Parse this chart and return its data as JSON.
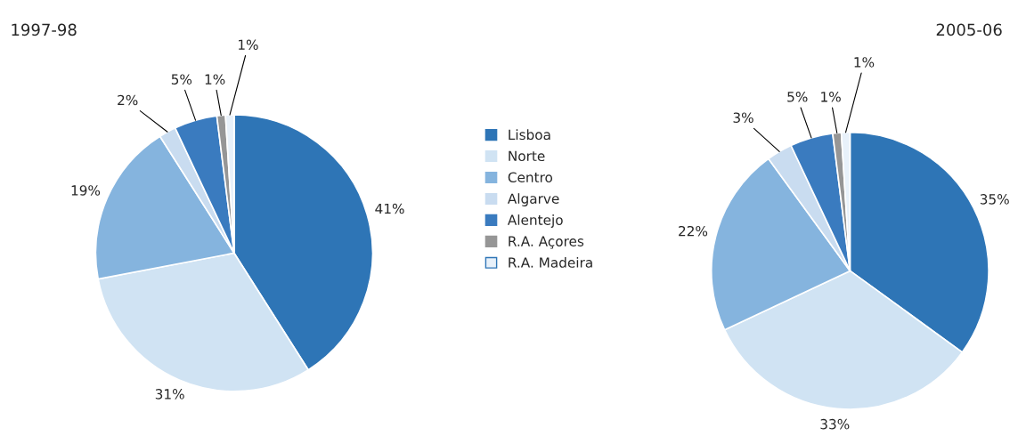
{
  "chart_data": [
    {
      "type": "pie",
      "title": "1997-98",
      "categories": [
        "Lisboa",
        "Norte",
        "Centro",
        "Algarve",
        "Alentejo",
        "R.A. Açores",
        "R.A. Madeira"
      ],
      "values": [
        41,
        31,
        19,
        2,
        5,
        1,
        1
      ],
      "colors": [
        "#2e75b6",
        "#d0e3f3",
        "#85b4de",
        "#c9dcf0",
        "#3a7bbf",
        "#969696",
        "#e8f1fa"
      ],
      "value_labels": [
        "41%",
        "31%",
        "19%",
        "2%",
        "5%",
        "1%",
        "1%"
      ],
      "legend": "right"
    },
    {
      "type": "pie",
      "title": "2005-06",
      "values": [
        35,
        33,
        22,
        3,
        5,
        1,
        1
      ],
      "colors": [
        "#2e75b6",
        "#d0e3f3",
        "#85b4de",
        "#c9dcf0",
        "#3a7bbf",
        "#969696",
        "#e8f1fa"
      ],
      "value_labels": [
        "35%",
        "33%",
        "22%",
        "3%",
        "5%",
        "1%",
        "1%"
      ],
      "legend": false
    }
  ]
}
